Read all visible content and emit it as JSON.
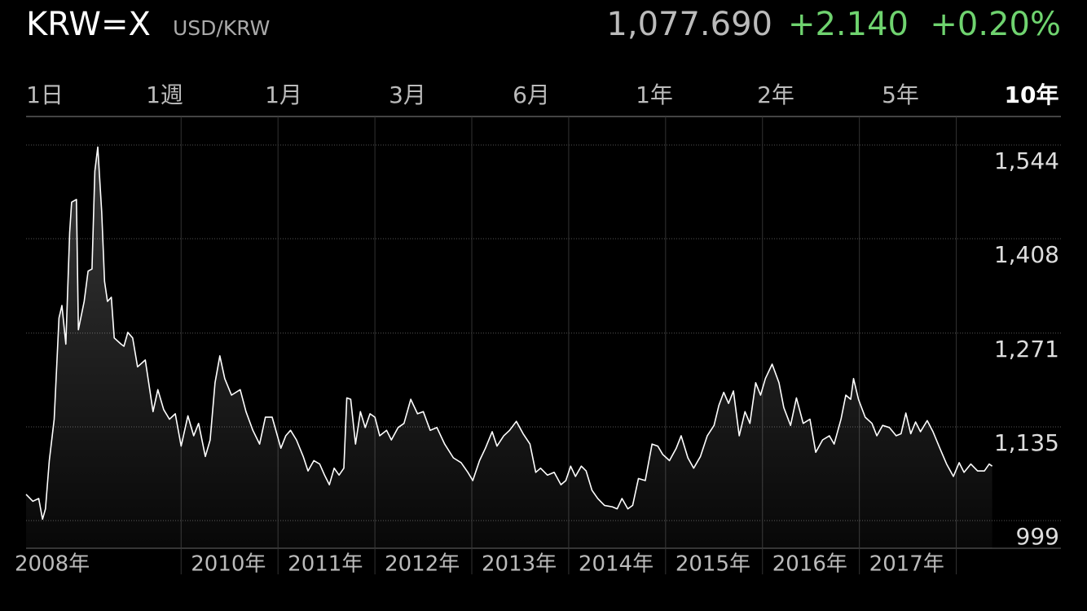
{
  "header": {
    "symbol": "KRW=X",
    "pair": "USD/KRW",
    "price": "1,077.690",
    "change": "+2.140",
    "change_percent": "+0.20%",
    "change_color": "#6fd36f"
  },
  "tabs": [
    "1日",
    "1週",
    "1月",
    "3月",
    "6月",
    "1年",
    "2年",
    "5年",
    "10年"
  ],
  "selected_tab": 8,
  "chart_data": {
    "type": "line",
    "color": "#ffffff",
    "x": [
      2008.4,
      2008.47,
      2008.53,
      2008.57,
      2008.6,
      2008.64,
      2008.69,
      2008.74,
      2008.77,
      2008.81,
      2008.85,
      2008.87,
      2008.92,
      2008.94,
      2009.0,
      2009.04,
      2009.08,
      2009.11,
      2009.14,
      2009.18,
      2009.21,
      2009.24,
      2009.28,
      2009.31,
      2009.38,
      2009.41,
      2009.45,
      2009.5,
      2009.55,
      2009.63,
      2009.71,
      2009.76,
      2009.82,
      2009.88,
      2009.94,
      2010.0,
      2010.07,
      2010.13,
      2010.18,
      2010.25,
      2010.3,
      2010.35,
      2010.4,
      2010.45,
      2010.52,
      2010.61,
      2010.67,
      2010.74,
      2010.81,
      2010.87,
      2010.94,
      2011.03,
      2011.08,
      2011.13,
      2011.19,
      2011.26,
      2011.31,
      2011.37,
      2011.43,
      2011.48,
      2011.53,
      2011.58,
      2011.63,
      2011.68,
      2011.71,
      2011.75,
      2011.8,
      2011.85,
      2011.9,
      2011.95,
      2012.0,
      2012.05,
      2012.12,
      2012.17,
      2012.24,
      2012.3,
      2012.37,
      2012.44,
      2012.5,
      2012.57,
      2012.64,
      2012.72,
      2012.81,
      2012.89,
      2012.96,
      2013.01,
      2013.08,
      2013.14,
      2013.21,
      2013.26,
      2013.33,
      2013.39,
      2013.46,
      2013.53,
      2013.6,
      2013.66,
      2013.71,
      2013.78,
      2013.85,
      2013.92,
      2013.97,
      2014.02,
      2014.07,
      2014.13,
      2014.18,
      2014.24,
      2014.3,
      2014.37,
      2014.45,
      2014.5,
      2014.55,
      2014.61,
      2014.66,
      2014.72,
      2014.79,
      2014.86,
      2014.92,
      2014.97,
      2015.04,
      2015.11,
      2015.16,
      2015.23,
      2015.29,
      2015.36,
      2015.43,
      2015.5,
      2015.55,
      2015.6,
      2015.65,
      2015.7,
      2015.76,
      2015.82,
      2015.87,
      2015.93,
      2015.98,
      2016.03,
      2016.1,
      2016.17,
      2016.22,
      2016.29,
      2016.35,
      2016.42,
      2016.49,
      2016.55,
      2016.62,
      2016.69,
      2016.74,
      2016.81,
      2016.86,
      2016.91,
      2016.94,
      2016.99,
      2017.06,
      2017.13,
      2017.18,
      2017.24,
      2017.31,
      2017.38,
      2017.43,
      2017.48,
      2017.53,
      2017.58,
      2017.63,
      2017.7,
      2017.76,
      2017.83,
      2017.9,
      2017.97,
      2018.03,
      2018.08,
      2018.15,
      2018.22,
      2018.29,
      2018.34,
      2018.37
    ],
    "values": [
      1037,
      1027,
      1031,
      1001,
      1016,
      1086,
      1146,
      1293,
      1311,
      1255,
      1417,
      1461,
      1465,
      1276,
      1317,
      1361,
      1364,
      1506,
      1541,
      1447,
      1346,
      1317,
      1323,
      1264,
      1255,
      1252,
      1272,
      1264,
      1222,
      1232,
      1157,
      1189,
      1160,
      1146,
      1154,
      1107,
      1151,
      1122,
      1140,
      1092,
      1116,
      1199,
      1238,
      1205,
      1181,
      1189,
      1157,
      1130,
      1110,
      1149,
      1149,
      1104,
      1122,
      1130,
      1116,
      1092,
      1071,
      1086,
      1081,
      1065,
      1051,
      1075,
      1065,
      1075,
      1177,
      1175,
      1110,
      1157,
      1134,
      1154,
      1149,
      1122,
      1130,
      1116,
      1134,
      1140,
      1175,
      1154,
      1157,
      1130,
      1134,
      1110,
      1090,
      1083,
      1069,
      1057,
      1086,
      1104,
      1128,
      1107,
      1122,
      1130,
      1143,
      1125,
      1110,
      1069,
      1075,
      1065,
      1069,
      1051,
      1057,
      1078,
      1063,
      1078,
      1071,
      1043,
      1031,
      1021,
      1019,
      1016,
      1031,
      1016,
      1021,
      1060,
      1057,
      1110,
      1107,
      1095,
      1086,
      1104,
      1122,
      1090,
      1075,
      1092,
      1122,
      1137,
      1166,
      1185,
      1169,
      1187,
      1122,
      1157,
      1140,
      1199,
      1181,
      1205,
      1226,
      1199,
      1163,
      1137,
      1177,
      1140,
      1146,
      1098,
      1116,
      1122,
      1110,
      1146,
      1181,
      1175,
      1205,
      1175,
      1149,
      1140,
      1122,
      1137,
      1134,
      1122,
      1125,
      1155,
      1125,
      1142,
      1128,
      1144,
      1128,
      1104,
      1081,
      1063,
      1083,
      1069,
      1081,
      1071,
      1071,
      1081,
      1078
    ],
    "xlim": [
      2008.4,
      2019.08
    ],
    "xticks": [
      {
        "value": 2008,
        "label": "2008年"
      },
      {
        "value": 2010,
        "label": "2010年"
      },
      {
        "value": 2011,
        "label": "2011年"
      },
      {
        "value": 2012,
        "label": "2012年"
      },
      {
        "value": 2013,
        "label": "2013年"
      },
      {
        "value": 2014,
        "label": "2014年"
      },
      {
        "value": 2015,
        "label": "2015年"
      },
      {
        "value": 2016,
        "label": "2016年"
      },
      {
        "value": 2017,
        "label": "2017年"
      },
      {
        "value": 2018,
        "label": null
      }
    ],
    "ylim": [
      958.8,
      1585.3
    ],
    "yticks": [
      999,
      {
        "value": 1135,
        "label": "1,135"
      },
      {
        "value": 1271,
        "label": "1,271"
      },
      {
        "value": 1408,
        "label": "1,408"
      },
      {
        "value": 1544,
        "label": "1,544"
      }
    ],
    "grid": true
  }
}
